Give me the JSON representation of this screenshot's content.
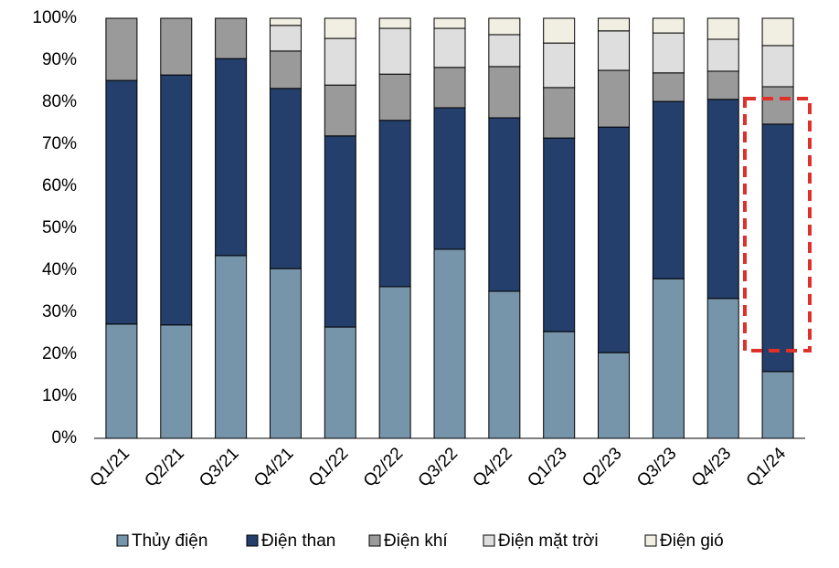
{
  "chart_data": {
    "type": "stacked_bar",
    "categories": [
      "Q1/21",
      "Q2/21",
      "Q3/21",
      "Q4/21",
      "Q1/22",
      "Q2/22",
      "Q3/22",
      "Q4/22",
      "Q1/23",
      "Q2/23",
      "Q3/23",
      "Q4/23",
      "Q1/24"
    ],
    "series": [
      {
        "name": "Thủy điện",
        "color": "#7795aa",
        "values": [
          27.2,
          27.0,
          43.5,
          40.4,
          26.5,
          36.1,
          45.0,
          35.0,
          25.4,
          20.4,
          38.0,
          33.3,
          15.9
        ]
      },
      {
        "name": "Điện than",
        "color": "#243f6b",
        "values": [
          58.0,
          59.5,
          46.9,
          42.9,
          45.5,
          39.6,
          33.7,
          41.3,
          46.1,
          53.7,
          42.2,
          47.4,
          58.9
        ]
      },
      {
        "name": "Điện khí",
        "color": "#9a9a9a",
        "values": [
          14.8,
          13.5,
          9.6,
          8.9,
          12.1,
          11.0,
          9.6,
          12.2,
          12.0,
          13.5,
          6.8,
          6.7,
          8.9
        ]
      },
      {
        "name": "Điện mặt trời",
        "color": "#dedede",
        "values": [
          0,
          0,
          0,
          6.1,
          11.1,
          10.9,
          9.3,
          7.6,
          10.6,
          9.4,
          9.5,
          7.6,
          9.8
        ]
      },
      {
        "name": "Điện gió",
        "color": "#f1eee2",
        "values": [
          0,
          0,
          0,
          1.7,
          4.8,
          2.4,
          2.4,
          3.9,
          5.9,
          3.0,
          3.5,
          5.0,
          6.5
        ]
      }
    ],
    "ylim": [
      0,
      100
    ],
    "yticks": [
      {
        "value": 0,
        "label": "0%"
      },
      {
        "value": 10,
        "label": "10%"
      },
      {
        "value": 20,
        "label": "20%"
      },
      {
        "value": 30,
        "label": "30%"
      },
      {
        "value": 40,
        "label": "40%"
      },
      {
        "value": 50,
        "label": "50%"
      },
      {
        "value": 60,
        "label": "60%"
      },
      {
        "value": 70,
        "label": "70%"
      },
      {
        "value": 80,
        "label": "80%"
      },
      {
        "value": 90,
        "label": "90%"
      },
      {
        "value": 100,
        "label": "100%"
      }
    ],
    "legend": "bottom"
  }
}
